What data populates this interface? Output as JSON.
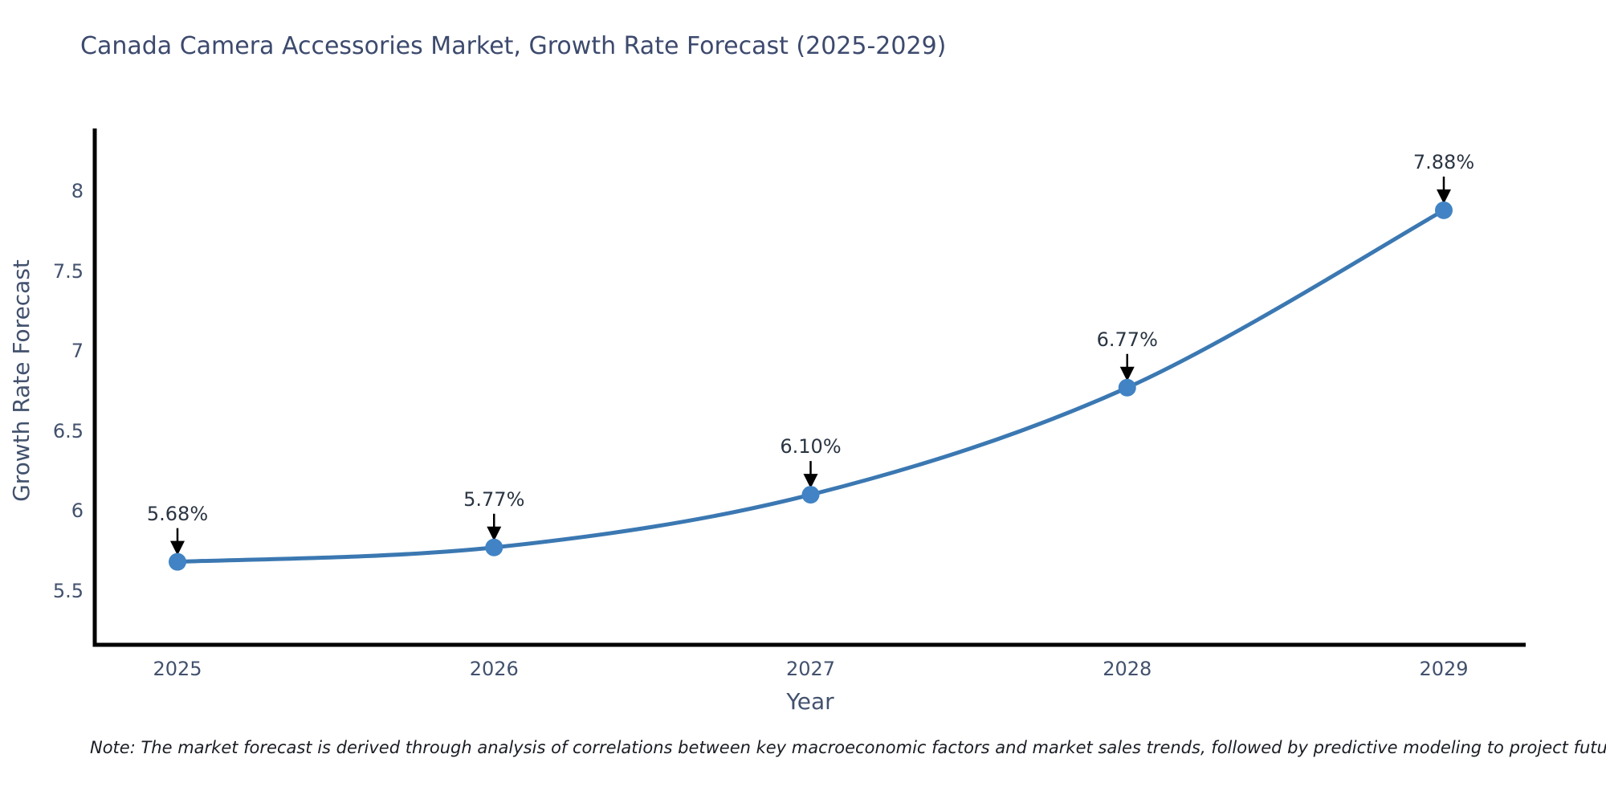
{
  "chart_data": {
    "type": "line",
    "title": "Canada Camera Accessories Market, Growth Rate Forecast (2025-2029)",
    "xlabel": "Year",
    "ylabel": "Growth Rate Forecast",
    "categories": [
      "2025",
      "2026",
      "2027",
      "2028",
      "2029"
    ],
    "values": [
      5.68,
      5.77,
      6.1,
      6.77,
      7.88
    ],
    "point_labels": [
      "5.68%",
      "5.77%",
      "6.10%",
      "6.77%",
      "7.88%"
    ],
    "yticks": [
      8,
      7.5,
      7,
      6.5,
      6,
      5.5
    ],
    "ytick_labels": [
      "8",
      "7.5",
      "7",
      "6.5",
      "6",
      "5.5"
    ],
    "ylim": [
      5.16,
      8.4
    ],
    "grid": false,
    "legend": "none",
    "line_shape": "spline",
    "annotation_arrows": true
  },
  "note": "Note: The market forecast is derived through analysis of correlations between key macroeconomic factors and market sales trends, followed by predictive modeling to project future sales",
  "colors": {
    "background": "#ffffff",
    "line": "#3b78b2",
    "marker": "#4183c4",
    "axis": "#000000",
    "arrow": "#000000",
    "title_text": "#3d4a6e",
    "tick_text": "#42516d",
    "annotation_text": "#2a3442",
    "note_text": "#1a1d24"
  }
}
